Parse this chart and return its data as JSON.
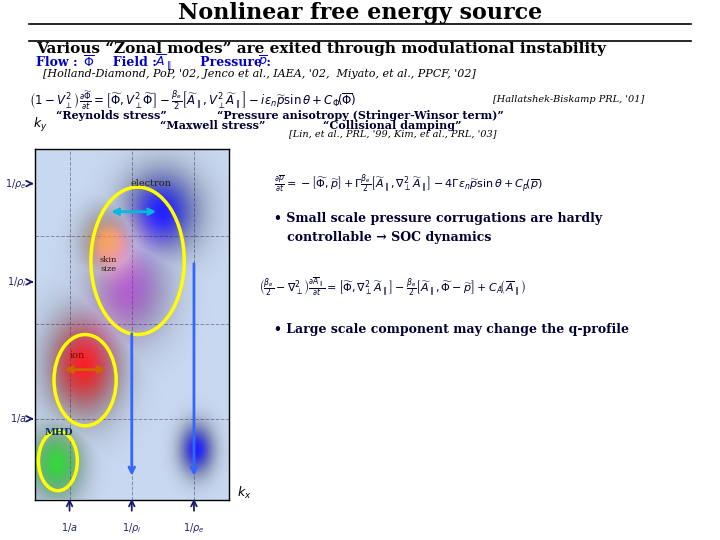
{
  "title": "Nonlinear free energy source",
  "subtitle": "Various “Zonal modes” are exited through modulational instability",
  "bg_color": "#ffffff",
  "title_color": "#000000",
  "subtitle_color": "#000000",
  "flow_color": "#0000cc",
  "eq_color": "#000033",
  "refs1": "[Holland-Diamond, PoP, ’02, Jenco et al., IAEA, ’02,  Miyato, et al., PPCF, ’02]",
  "hallatshek_ref": "[Hallatshek-Biskamp PRL, ’01]",
  "reynolds_label": "“Reynolds stress”",
  "pressure_aniso_label": "“Pressure anisotropy (Stringer-Winsor term)”",
  "maxwell_label": "“Maxwell stress”",
  "collisional_label": "“Collisional damping”",
  "lin_ref": "[Lin, et al., PRL, ’99, Kim, et al., PRL, ’03]",
  "bullet1": "• Small scale pressure corrugations are hardly\n   controllable → SOC dynamics",
  "bullet2": "• Large scale component may change the q-profile"
}
